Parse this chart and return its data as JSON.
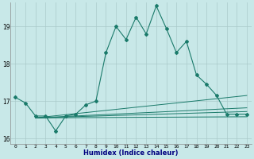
{
  "xlabel": "Humidex (Indice chaleur)",
  "background_color": "#c8e8e8",
  "grid_color": "#aacaca",
  "line_color": "#1a7a6a",
  "xlim": [
    -0.5,
    23.5
  ],
  "ylim": [
    15.85,
    19.65
  ],
  "yticks": [
    16,
    17,
    18,
    19
  ],
  "xticks": [
    0,
    1,
    2,
    3,
    4,
    5,
    6,
    7,
    8,
    9,
    10,
    11,
    12,
    13,
    14,
    15,
    16,
    17,
    18,
    19,
    20,
    21,
    22,
    23
  ],
  "main_line": {
    "x": [
      0,
      1,
      2,
      3,
      4,
      5,
      6,
      7,
      8,
      9,
      10,
      11,
      12,
      13,
      14,
      15,
      16,
      17,
      18,
      19,
      20,
      21,
      22,
      23
    ],
    "y": [
      17.1,
      16.95,
      16.6,
      16.6,
      16.2,
      16.6,
      16.65,
      16.9,
      17.0,
      18.3,
      19.0,
      18.65,
      19.25,
      18.8,
      19.55,
      18.95,
      18.3,
      18.6,
      17.7,
      17.45,
      17.15,
      16.65,
      16.65,
      16.65
    ]
  },
  "flat_lines": [
    {
      "x": [
        2,
        23
      ],
      "y": [
        16.55,
        16.58
      ]
    },
    {
      "x": [
        2,
        23
      ],
      "y": [
        16.55,
        16.72
      ]
    },
    {
      "x": [
        2,
        23
      ],
      "y": [
        16.55,
        16.82
      ]
    },
    {
      "x": [
        2,
        23
      ],
      "y": [
        16.55,
        17.15
      ]
    }
  ]
}
